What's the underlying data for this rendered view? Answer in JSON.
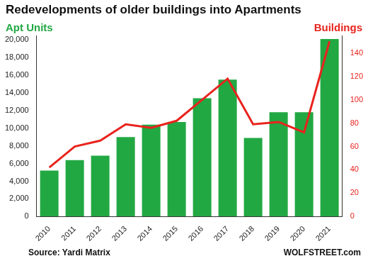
{
  "chart_data": {
    "type": "bar",
    "title": "Redevelopments of older buildings into Apartments",
    "ylabel": "Apt Units",
    "y2label": "Buildings",
    "annotations": [
      "Source: Yardi Matrix",
      "WOLFSTREET.com"
    ],
    "categories": [
      "2010",
      "2011",
      "2012",
      "2013",
      "2014",
      "2015",
      "2016",
      "2017",
      "2018",
      "2019",
      "2020",
      "2021"
    ],
    "series": [
      {
        "name": "Apt Units",
        "type": "bar",
        "color": "#22a843",
        "values": [
          5200,
          6400,
          6900,
          9000,
          10400,
          10700,
          13400,
          15500,
          8900,
          11800,
          11800,
          20100
        ]
      },
      {
        "name": "Buildings",
        "type": "line",
        "color": "#e8231d",
        "axis": "y2",
        "values": [
          42,
          60,
          65,
          79,
          76,
          82,
          100,
          118,
          79,
          81,
          72,
          150
        ]
      }
    ],
    "ylim": [
      0,
      20500
    ],
    "yticks": [
      0,
      {
        "value": 2000,
        "label": "2,000"
      },
      {
        "value": 4000,
        "label": "4,000"
      },
      {
        "value": 6000,
        "label": "6,000"
      },
      {
        "value": 8000,
        "label": "8,000"
      },
      {
        "value": 10000,
        "label": "10,000"
      },
      {
        "value": 12000,
        "label": "12,000"
      },
      {
        "value": 14000,
        "label": "14,000"
      },
      {
        "value": 16000,
        "label": "16,000"
      },
      {
        "value": 18000,
        "label": "18,000"
      },
      {
        "value": 20000,
        "label": "20,000"
      }
    ],
    "y2lim": [
      0,
      155
    ],
    "y2ticks": [
      0,
      20,
      40,
      60,
      80,
      100,
      120,
      140
    ],
    "grid": false
  }
}
